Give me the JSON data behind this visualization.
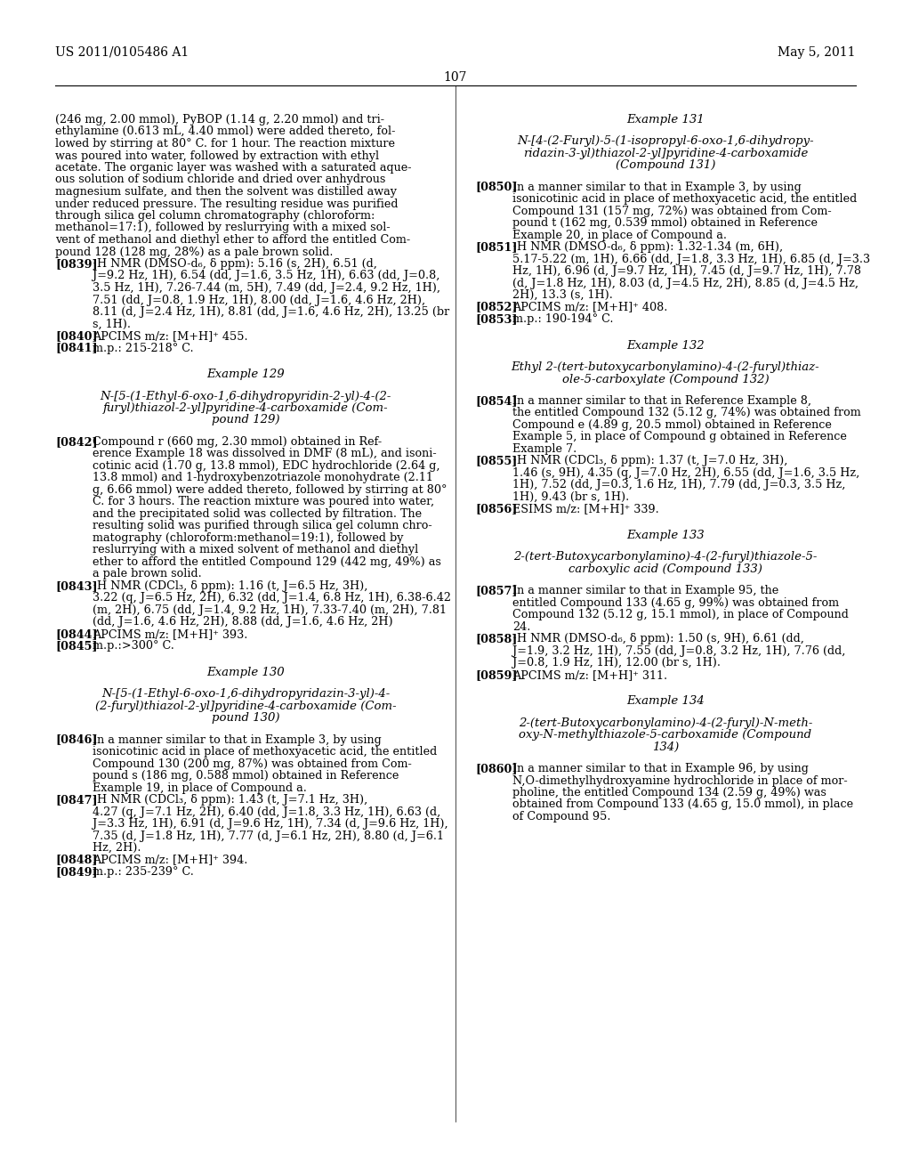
{
  "background_color": "#ffffff",
  "header_left": "US 2011/0105486 A1",
  "header_right": "May 5, 2011",
  "page_number": "107",
  "left_col": {
    "paragraphs": [
      {
        "type": "body",
        "lines": [
          "(246 mg, 2.00 mmol), PyBOP (1.14 g, 2.20 mmol) and tri-",
          "ethylamine (0.613 mL, 4.40 mmol) were added thereto, fol-",
          "lowed by stirring at 80° C. for 1 hour. The reaction mixture",
          "was poured into water, followed by extraction with ethyl",
          "acetate. The organic layer was washed with a saturated aque-",
          "ous solution of sodium chloride and dried over anhydrous",
          "magnesium sulfate, and then the solvent was distilled away",
          "under reduced pressure. The resulting residue was purified",
          "through silica gel column chromatography (chloroform:",
          "methanol=17:1), followed by reslurrying with a mixed sol-",
          "vent of methanol and diethyl ether to afford the entitled Com-",
          "pound 128 (128 mg, 28%) as a pale brown solid."
        ]
      },
      {
        "type": "numbered",
        "tag": "[0839]",
        "lines": [
          "¹H NMR (DMSO-d₆, δ ppm): 5.16 (s, 2H), 6.51 (d,",
          "J=9.2 Hz, 1H), 6.54 (dd, J=1.6, 3.5 Hz, 1H), 6.63 (dd, J=0.8,",
          "3.5 Hz, 1H), 7.26-7.44 (m, 5H), 7.49 (dd, J=2.4, 9.2 Hz, 1H),",
          "7.51 (dd, J=0.8, 1.9 Hz, 1H), 8.00 (dd, J=1.6, 4.6 Hz, 2H),",
          "8.11 (d, J=2.4 Hz, 1H), 8.81 (dd, J=1.6, 4.6 Hz, 2H), 13.25 (br",
          "s, 1H)."
        ]
      },
      {
        "type": "numbered",
        "tag": "[0840]",
        "lines": [
          "APCIMS m/z: [M+H]⁺ 455."
        ]
      },
      {
        "type": "numbered",
        "tag": "[0841]",
        "lines": [
          "m.p.: 215-218° C."
        ]
      },
      {
        "type": "vspace",
        "amount": 1.2
      },
      {
        "type": "center_italic",
        "lines": [
          "Example 129"
        ]
      },
      {
        "type": "vspace",
        "amount": 0.8
      },
      {
        "type": "center_italic",
        "lines": [
          "N-[5-(1-Ethyl-6-oxo-1,6-dihydropyridin-2-yl)-4-(2-",
          "furyl)thiazol-2-yl]pyridine-4-carboxamide (Com-",
          "pound 129)"
        ]
      },
      {
        "type": "vspace",
        "amount": 0.8
      },
      {
        "type": "numbered",
        "tag": "[0842]",
        "lines": [
          "Compound r (660 mg, 2.30 mmol) obtained in Ref-",
          "erence Example 18 was dissolved in DMF (8 mL), and isoni-",
          "cotinic acid (1.70 g, 13.8 mmol), EDC hydrochloride (2.64 g,",
          "13.8 mmol) and 1-hydroxybenzotriazole monohydrate (2.11",
          "g, 6.66 mmol) were added thereto, followed by stirring at 80°",
          "C. for 3 hours. The reaction mixture was poured into water,",
          "and the precipitated solid was collected by filtration. The",
          "resulting solid was purified through silica gel column chro-",
          "matography (chloroform:methanol=19:1), followed by",
          "reslurrying with a mixed solvent of methanol and diethyl",
          "ether to afford the entitled Compound 129 (442 mg, 49%) as",
          "a pale brown solid."
        ]
      },
      {
        "type": "numbered",
        "tag": "[0843]",
        "lines": [
          "¹H NMR (CDCl₃, δ ppm): 1.16 (t, J=6.5 Hz, 3H),",
          "3.22 (q, J=6.5 Hz, 2H), 6.32 (dd, J=1.4, 6.8 Hz, 1H), 6.38-6.42",
          "(m, 2H), 6.75 (dd, J=1.4, 9.2 Hz, 1H), 7.33-7.40 (m, 2H), 7.81",
          "(dd, J=1.6, 4.6 Hz, 2H), 8.88 (dd, J=1.6, 4.6 Hz, 2H)"
        ]
      },
      {
        "type": "numbered",
        "tag": "[0844]",
        "lines": [
          "APCIMS m/z: [M+H]⁺ 393."
        ]
      },
      {
        "type": "numbered",
        "tag": "[0845]",
        "lines": [
          "m.p.:>300° C."
        ]
      },
      {
        "type": "vspace",
        "amount": 1.2
      },
      {
        "type": "center_italic",
        "lines": [
          "Example 130"
        ]
      },
      {
        "type": "vspace",
        "amount": 0.8
      },
      {
        "type": "center_italic",
        "lines": [
          "N-[5-(1-Ethyl-6-oxo-1,6-dihydropyridazin-3-yl)-4-",
          "(2-furyl)thiazol-2-yl]pyridine-4-carboxamide (Com-",
          "pound 130)"
        ]
      },
      {
        "type": "vspace",
        "amount": 0.8
      },
      {
        "type": "numbered",
        "tag": "[0846]",
        "lines": [
          "In a manner similar to that in Example 3, by using",
          "isonicotinic acid in place of methoxyacetic acid, the entitled",
          "Compound 130 (200 mg, 87%) was obtained from Com-",
          "pound s (186 mg, 0.588 mmol) obtained in Reference",
          "Example 19, in place of Compound a."
        ]
      },
      {
        "type": "numbered",
        "tag": "[0847]",
        "lines": [
          "¹H NMR (CDCl₃, δ ppm): 1.43 (t, J=7.1 Hz, 3H),",
          "4.27 (q, J=7.1 Hz, 2H), 6.40 (dd, J=1.8, 3.3 Hz, 1H), 6.63 (d,",
          "J=3.3 Hz, 1H), 6.91 (d, J=9.6 Hz, 1H), 7.34 (d, J=9.6 Hz, 1H),",
          "7.35 (d, J=1.8 Hz, 1H), 7.77 (d, J=6.1 Hz, 2H), 8.80 (d, J=6.1",
          "Hz, 2H)."
        ]
      },
      {
        "type": "numbered",
        "tag": "[0848]",
        "lines": [
          "APCIMS m/z: [M+H]⁺ 394."
        ]
      },
      {
        "type": "numbered",
        "tag": "[0849]",
        "lines": [
          "m.p.: 235-239° C."
        ]
      }
    ]
  },
  "right_col": {
    "paragraphs": [
      {
        "type": "center_italic",
        "lines": [
          "Example 131"
        ]
      },
      {
        "type": "vspace",
        "amount": 0.8
      },
      {
        "type": "center_italic",
        "lines": [
          "N-[4-(2-Furyl)-5-(1-isopropyl-6-oxo-1,6-dihydropy-",
          "ridazin-3-yl)thiazol-2-yl]pyridine-4-carboxamide",
          "(Compound 131)"
        ]
      },
      {
        "type": "vspace",
        "amount": 0.8
      },
      {
        "type": "numbered",
        "tag": "[0850]",
        "lines": [
          "In a manner similar to that in Example 3, by using",
          "isonicotinic acid in place of methoxyacetic acid, the entitled",
          "Compound 131 (157 mg, 72%) was obtained from Com-",
          "pound t (162 mg, 0.539 mmol) obtained in Reference",
          "Example 20, in place of Compound a."
        ]
      },
      {
        "type": "numbered",
        "tag": "[0851]",
        "lines": [
          "¹H NMR (DMSO-d₆, δ ppm): 1.32-1.34 (m, 6H),",
          "5.17-5.22 (m, 1H), 6.66 (dd, J=1.8, 3.3 Hz, 1H), 6.85 (d, J=3.3",
          "Hz, 1H), 6.96 (d, J=9.7 Hz, 1H), 7.45 (d, J=9.7 Hz, 1H), 7.78",
          "(d, J=1.8 Hz, 1H), 8.03 (d, J=4.5 Hz, 2H), 8.85 (d, J=4.5 Hz,",
          "2H), 13.3 (s, 1H)."
        ]
      },
      {
        "type": "numbered",
        "tag": "[0852]",
        "lines": [
          "APCIMS m/z: [M+H]⁺ 408."
        ]
      },
      {
        "type": "numbered",
        "tag": "[0853]",
        "lines": [
          "m.p.: 190-194° C."
        ]
      },
      {
        "type": "vspace",
        "amount": 1.2
      },
      {
        "type": "center_italic",
        "lines": [
          "Example 132"
        ]
      },
      {
        "type": "vspace",
        "amount": 0.8
      },
      {
        "type": "center_italic",
        "lines": [
          "Ethyl 2-(tert-butoxycarbonylamino)-4-(2-furyl)thiaz-",
          "ole-5-carboxylate (Compound 132)"
        ]
      },
      {
        "type": "vspace",
        "amount": 0.8
      },
      {
        "type": "numbered",
        "tag": "[0854]",
        "lines": [
          "In a manner similar to that in Reference Example 8,",
          "the entitled Compound 132 (5.12 g, 74%) was obtained from",
          "Compound e (4.89 g, 20.5 mmol) obtained in Reference",
          "Example 5, in place of Compound g obtained in Reference",
          "Example 7."
        ]
      },
      {
        "type": "numbered",
        "tag": "[0855]",
        "lines": [
          "¹H NMR (CDCl₃, δ ppm): 1.37 (t, J=7.0 Hz, 3H),",
          "1.46 (s, 9H), 4.35 (q, J=7.0 Hz, 2H), 6.55 (dd, J=1.6, 3.5 Hz,",
          "1H), 7.52 (dd, J=0.3, 1.6 Hz, 1H), 7.79 (dd, J=0.3, 3.5 Hz,",
          "1H), 9.43 (br s, 1H)."
        ]
      },
      {
        "type": "numbered",
        "tag": "[0856]",
        "lines": [
          "ESIMS m/z: [M+H]⁺ 339."
        ]
      },
      {
        "type": "vspace",
        "amount": 1.2
      },
      {
        "type": "center_italic",
        "lines": [
          "Example 133"
        ]
      },
      {
        "type": "vspace",
        "amount": 0.8
      },
      {
        "type": "center_italic",
        "lines": [
          "2-(tert-Butoxycarbonylamino)-4-(2-furyl)thiazole-5-",
          "carboxylic acid (Compound 133)"
        ]
      },
      {
        "type": "vspace",
        "amount": 0.8
      },
      {
        "type": "numbered",
        "tag": "[0857]",
        "lines": [
          "In a manner similar to that in Example 95, the",
          "entitled Compound 133 (4.65 g, 99%) was obtained from",
          "Compound 132 (5.12 g, 15.1 mmol), in place of Compound",
          "24."
        ]
      },
      {
        "type": "numbered",
        "tag": "[0858]",
        "lines": [
          "¹H NMR (DMSO-d₆, δ ppm): 1.50 (s, 9H), 6.61 (dd,",
          "J=1.9, 3.2 Hz, 1H), 7.55 (dd, J=0.8, 3.2 Hz, 1H), 7.76 (dd,",
          "J=0.8, 1.9 Hz, 1H), 12.00 (br s, 1H)."
        ]
      },
      {
        "type": "numbered",
        "tag": "[0859]",
        "lines": [
          "APCIMS m/z: [M+H]⁺ 311."
        ]
      },
      {
        "type": "vspace",
        "amount": 1.2
      },
      {
        "type": "center_italic",
        "lines": [
          "Example 134"
        ]
      },
      {
        "type": "vspace",
        "amount": 0.8
      },
      {
        "type": "center_italic",
        "lines": [
          "2-(tert-Butoxycarbonylamino)-4-(2-furyl)-N-meth-",
          "oxy-N-methylthiazole-5-carboxamide (Compound",
          "134)"
        ]
      },
      {
        "type": "vspace",
        "amount": 0.8
      },
      {
        "type": "numbered",
        "tag": "[0860]",
        "lines": [
          "In a manner similar to that in Example 96, by using",
          "N,O-dimethylhydroxyamine hydrochloride in place of mor-",
          "pholine, the entitled Compound 134 (2.59 g, 49%) was",
          "obtained from Compound 133 (4.65 g, 15.0 mmol), in place",
          "of Compound 95."
        ]
      }
    ]
  }
}
